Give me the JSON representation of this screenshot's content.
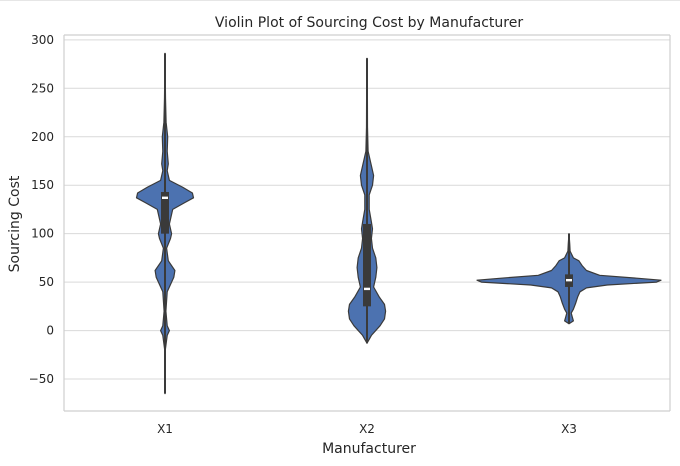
{
  "chart_data": {
    "type": "violin",
    "title": "Violin Plot of Sourcing Cost by Manufacturer",
    "xlabel": "Manufacturer",
    "ylabel": "Sourcing Cost",
    "ylim": [
      -83,
      305
    ],
    "yticks": [
      -50,
      0,
      50,
      100,
      150,
      200,
      250,
      300
    ],
    "ytick_labels": [
      "−50",
      "0",
      "50",
      "100",
      "150",
      "200",
      "250",
      "300"
    ],
    "grid": true,
    "categories": [
      "X1",
      "X2",
      "X3"
    ],
    "fill_color": "#4c72b0",
    "line_color": "#3a3a3a",
    "series": [
      {
        "category": "X1",
        "min": -65,
        "max": 286,
        "q1": 100,
        "median": 137,
        "q3": 143,
        "density": [
          [
            -65,
            0
          ],
          [
            -20,
            0.3
          ],
          [
            -5,
            2
          ],
          [
            0,
            4
          ],
          [
            5,
            2
          ],
          [
            20,
            0.8
          ],
          [
            40,
            2
          ],
          [
            55,
            8
          ],
          [
            62,
            9
          ],
          [
            72,
            3
          ],
          [
            85,
            1.5
          ],
          [
            95,
            5
          ],
          [
            100,
            6
          ],
          [
            110,
            4
          ],
          [
            125,
            7
          ],
          [
            132,
            18
          ],
          [
            137,
            26
          ],
          [
            142,
            25
          ],
          [
            148,
            16
          ],
          [
            155,
            4
          ],
          [
            165,
            2
          ],
          [
            172,
            3
          ],
          [
            185,
            2
          ],
          [
            200,
            2.5
          ],
          [
            215,
            1
          ],
          [
            240,
            0.5
          ],
          [
            286,
            0
          ]
        ]
      },
      {
        "category": "X2",
        "min": -13,
        "max": 281,
        "q1": 25,
        "median": 43,
        "q3": 110,
        "density": [
          [
            -13,
            0
          ],
          [
            -5,
            4
          ],
          [
            5,
            12
          ],
          [
            12,
            16
          ],
          [
            20,
            17
          ],
          [
            27,
            16
          ],
          [
            35,
            11
          ],
          [
            45,
            6
          ],
          [
            55,
            8
          ],
          [
            65,
            9
          ],
          [
            75,
            8
          ],
          [
            85,
            5
          ],
          [
            95,
            4
          ],
          [
            105,
            5
          ],
          [
            112,
            4
          ],
          [
            125,
            2
          ],
          [
            140,
            2
          ],
          [
            150,
            5
          ],
          [
            160,
            6
          ],
          [
            170,
            4
          ],
          [
            185,
            1
          ],
          [
            210,
            0.5
          ],
          [
            240,
            0.4
          ],
          [
            281,
            0
          ]
        ]
      },
      {
        "category": "X3",
        "min": 7,
        "max": 100,
        "q1": 45,
        "median": 52,
        "q3": 58,
        "density": [
          [
            7,
            0
          ],
          [
            10,
            4
          ],
          [
            14,
            3
          ],
          [
            18,
            2
          ],
          [
            22,
            4
          ],
          [
            28,
            6
          ],
          [
            35,
            8
          ],
          [
            40,
            10
          ],
          [
            44,
            16
          ],
          [
            47,
            35
          ],
          [
            50,
            80
          ],
          [
            52,
            84
          ],
          [
            54,
            62
          ],
          [
            57,
            28
          ],
          [
            62,
            16
          ],
          [
            67,
            12
          ],
          [
            72,
            9
          ],
          [
            75,
            4
          ],
          [
            82,
            1
          ],
          [
            90,
            0.6
          ],
          [
            100,
            0
          ]
        ]
      }
    ]
  }
}
